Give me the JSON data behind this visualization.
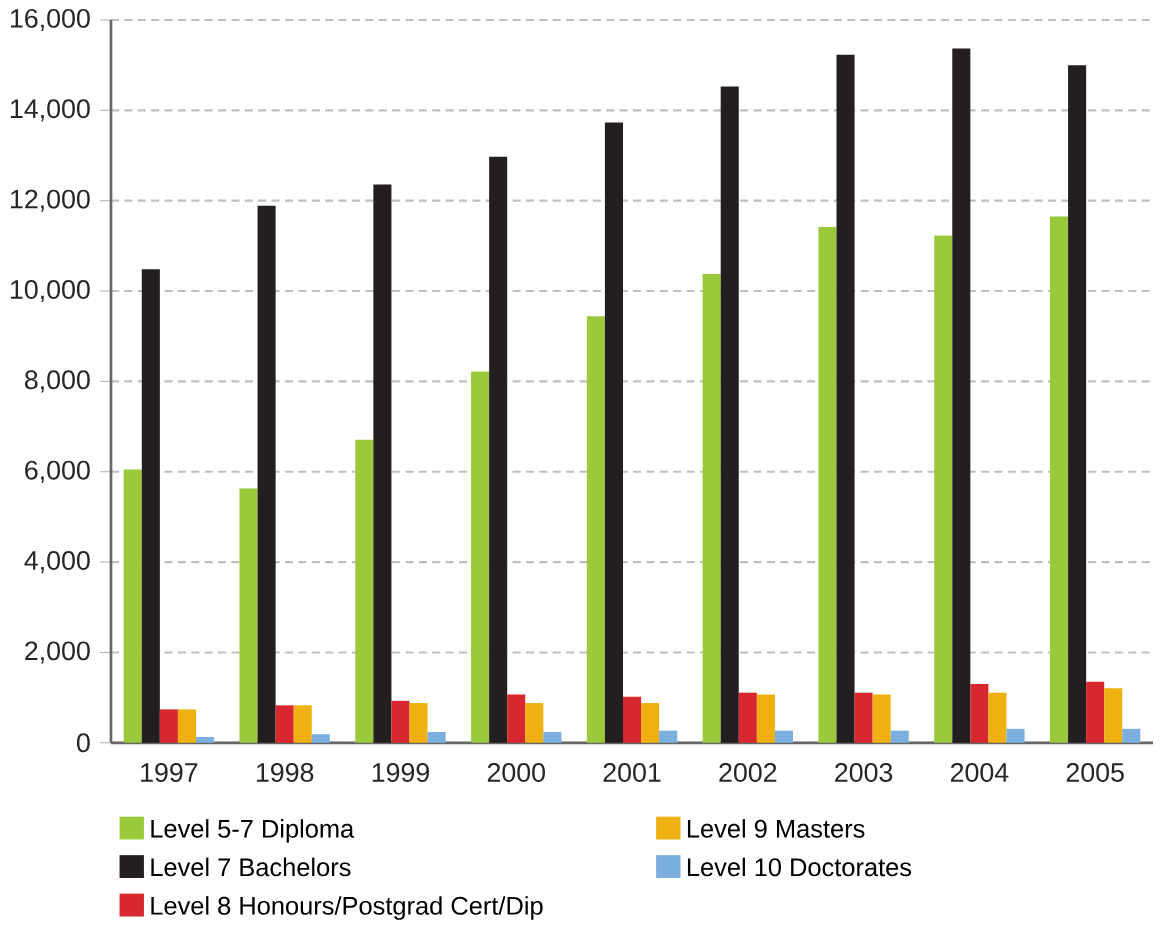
{
  "chart_data": {
    "type": "bar",
    "categories": [
      "1997",
      "1998",
      "1999",
      "2000",
      "2001",
      "2002",
      "2003",
      "2004",
      "2005"
    ],
    "series": [
      {
        "name": "Level 5-7 Diploma",
        "color": "#9aca3c",
        "values": [
          6050,
          5630,
          6710,
          8220,
          9440,
          10380,
          11420,
          11230,
          11650
        ]
      },
      {
        "name": "Level 7 Bachelors",
        "color": "#231f20",
        "values": [
          10480,
          11890,
          12360,
          12970,
          13730,
          14530,
          15230,
          15370,
          15000
        ]
      },
      {
        "name": "Level 8 Honours/Postgrad Cert/Dip",
        "color": "#d7282f",
        "values": [
          740,
          830,
          930,
          1070,
          1020,
          1110,
          1110,
          1300,
          1350
        ]
      },
      {
        "name": "Level 9 Masters",
        "color": "#efb111",
        "values": [
          740,
          830,
          880,
          880,
          880,
          1070,
          1070,
          1110,
          1210
        ]
      },
      {
        "name": "Level 10 Doctorates",
        "color": "#7aafde",
        "values": [
          130,
          190,
          240,
          240,
          270,
          270,
          270,
          310,
          310
        ]
      }
    ],
    "ylim": [
      0,
      16000
    ],
    "yticks": [
      {
        "value": 0,
        "label": "0"
      },
      {
        "value": 2000,
        "label": "2,000"
      },
      {
        "value": 4000,
        "label": "4,000"
      },
      {
        "value": 6000,
        "label": "6,000"
      },
      {
        "value": 8000,
        "label": "8,000"
      },
      {
        "value": 10000,
        "label": "10,000"
      },
      {
        "value": 12000,
        "label": "12,000"
      },
      {
        "value": 14000,
        "label": "14,000"
      },
      {
        "value": 16000,
        "label": "16,000"
      }
    ],
    "grid": "y",
    "legend": "bottom"
  }
}
